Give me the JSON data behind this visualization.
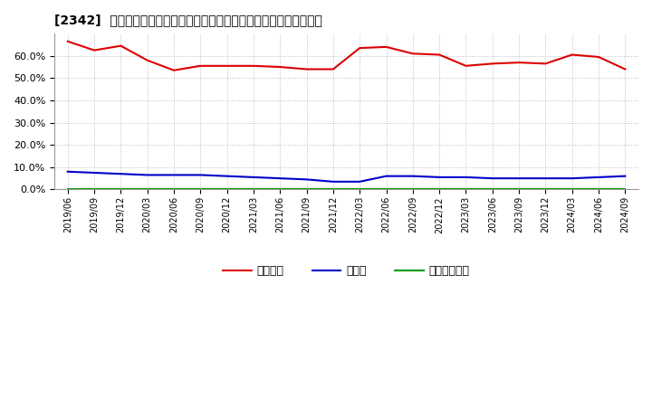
{
  "title": "[2342]  自己資本、のれん、繰延税金資産の総資産に対する比率の推移",
  "x_labels": [
    "2019/06",
    "2019/09",
    "2019/12",
    "2020/03",
    "2020/06",
    "2020/09",
    "2020/12",
    "2021/03",
    "2021/06",
    "2021/09",
    "2021/12",
    "2022/03",
    "2022/06",
    "2022/09",
    "2022/12",
    "2023/03",
    "2023/06",
    "2023/09",
    "2023/12",
    "2024/03",
    "2024/06",
    "2024/09"
  ],
  "jikoshihon": [
    66.5,
    62.5,
    64.5,
    58.0,
    53.5,
    55.5,
    55.5,
    55.5,
    55.0,
    54.0,
    54.0,
    63.5,
    64.0,
    61.0,
    60.5,
    55.5,
    56.5,
    57.0,
    56.5,
    60.5,
    59.5,
    54.0
  ],
  "noren": [
    8.0,
    7.5,
    7.0,
    6.5,
    6.5,
    6.5,
    6.0,
    5.5,
    5.0,
    4.5,
    3.5,
    3.5,
    6.0,
    6.0,
    5.5,
    5.5,
    5.0,
    5.0,
    5.0,
    5.0,
    5.5,
    6.0
  ],
  "kurinobe": [
    0.3,
    0.3,
    0.3,
    0.3,
    0.3,
    0.3,
    0.3,
    0.3,
    0.3,
    0.3,
    0.3,
    0.3,
    0.3,
    0.3,
    0.3,
    0.3,
    0.3,
    0.3,
    0.3,
    0.3,
    0.3,
    0.3
  ],
  "jikoshihon_color": "#dd0000",
  "noren_color": "#0000cc",
  "kurinobe_color": "#009900",
  "background_color": "#ffffff",
  "plot_bg_color": "#ffffff",
  "grid_color": "#bbbbbb",
  "ylim": [
    0,
    70
  ],
  "yticks": [
    0,
    10,
    20,
    30,
    40,
    50,
    60
  ],
  "legend_labels": [
    "自己資本",
    "のれん",
    "繰延税金資産"
  ]
}
